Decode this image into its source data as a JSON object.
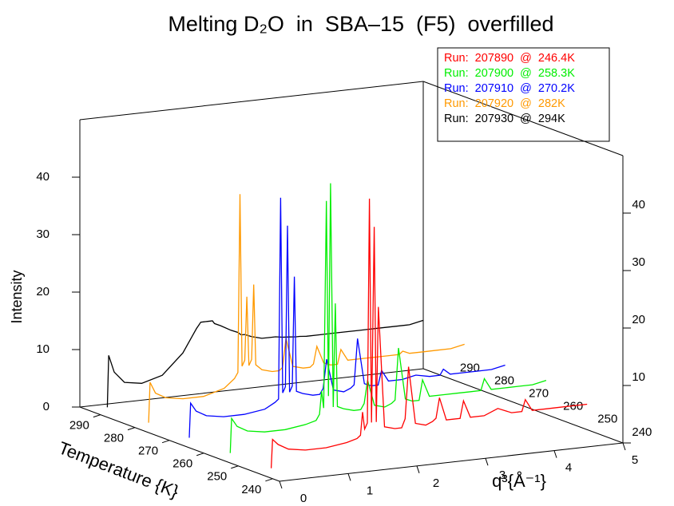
{
  "chart_data": {
    "type": "waterfall",
    "title": "Melting D₂O  in  SBA–15  (F5)  overfilled",
    "x_label": "q³{Å⁻¹}",
    "y_label": "Temperature {K}",
    "z_label": "Intensity",
    "xlim": [
      0,
      5
    ],
    "xticks": [
      0,
      1,
      2,
      3,
      4,
      5
    ],
    "tlim": [
      238,
      296
    ],
    "tticks": [
      240,
      250,
      260,
      270,
      280,
      290
    ],
    "zlim": [
      0,
      50
    ],
    "zticks": [
      0,
      10,
      20,
      30,
      40
    ],
    "x": [
      0.3,
      0.32,
      0.4,
      0.55,
      0.8,
      1.1,
      1.4,
      1.55,
      1.6,
      1.63,
      1.66,
      1.7,
      1.73,
      1.76,
      1.8,
      1.83,
      1.86,
      1.95,
      2.1,
      2.2,
      2.25,
      2.3,
      2.4,
      2.55,
      2.65,
      2.7,
      2.75,
      2.85,
      2.95,
      3.05,
      3.1,
      3.2,
      3.4,
      3.6,
      3.8,
      3.95,
      4.0,
      4.1,
      4.3,
      4.5,
      4.7,
      4.9
    ],
    "series": [
      {
        "name": "Run:  207890  @  246.4K",
        "temperature": 246.4,
        "color": "#ff0000",
        "values": [
          0,
          5,
          4,
          3,
          2.5,
          2.5,
          3,
          3.5,
          4,
          8,
          5,
          6,
          45,
          6,
          40,
          6,
          26,
          5,
          4.5,
          4.5,
          6,
          15,
          5,
          4.5,
          5,
          5.5,
          9,
          5,
          5,
          5,
          8,
          5,
          5,
          6,
          5,
          5,
          7,
          5,
          5,
          5,
          5,
          5
        ]
      },
      {
        "name": "Run:  207900  @  258.3K",
        "temperature": 258.3,
        "color": "#00ee00",
        "values": [
          0,
          6,
          4.5,
          3.5,
          3,
          3,
          3.5,
          4,
          5,
          9,
          6,
          42,
          8,
          45,
          6,
          24,
          6,
          5.5,
          5,
          5,
          6,
          10,
          5.5,
          5,
          5.5,
          6,
          15,
          6,
          5.5,
          5.5,
          9,
          6,
          6,
          6,
          6,
          6,
          8,
          6,
          6,
          6,
          6,
          6.5
        ]
      },
      {
        "name": "Run:  207910  @  270.2K",
        "temperature": 270.2,
        "color": "#0000ff",
        "values": [
          0,
          6,
          4.5,
          3.5,
          3,
          3,
          3.5,
          4.5,
          5,
          40,
          6,
          7,
          35,
          6,
          7,
          26,
          6,
          5.5,
          5,
          5,
          6,
          11,
          5.5,
          5,
          5.5,
          6,
          14,
          6,
          5.5,
          5.5,
          8,
          6,
          6,
          6.5,
          6,
          6,
          7,
          6,
          6,
          6,
          6,
          6.5
        ]
      },
      {
        "name": "Run:  207920  @  282K",
        "temperature": 282,
        "color": "#ff9900",
        "values": [
          0,
          7,
          5,
          4,
          3.5,
          3.5,
          4.5,
          6,
          7,
          38,
          8,
          9,
          20,
          8,
          9,
          22,
          8,
          7,
          6.5,
          6.5,
          7,
          12,
          7,
          6.5,
          6.5,
          7,
          10,
          7,
          6.5,
          6.5,
          9,
          7,
          7,
          7,
          7,
          7,
          7.5,
          7,
          7,
          7,
          7,
          7.5
        ]
      },
      {
        "name": "Run:  207930  @  294K",
        "temperature": 294,
        "color": "#000000",
        "values": [
          0,
          9,
          6,
          4,
          3.5,
          4.5,
          8,
          11,
          12,
          12.5,
          13,
          13,
          13,
          13,
          13,
          13,
          12.5,
          12,
          11,
          10.5,
          10,
          10,
          9.5,
          9,
          9,
          9,
          9,
          8.8,
          8.7,
          8.6,
          8.6,
          8.5,
          8.5,
          8.5,
          8.5,
          8.5,
          8.5,
          8.5,
          8.5,
          8.5,
          8.5,
          9
        ]
      }
    ]
  }
}
